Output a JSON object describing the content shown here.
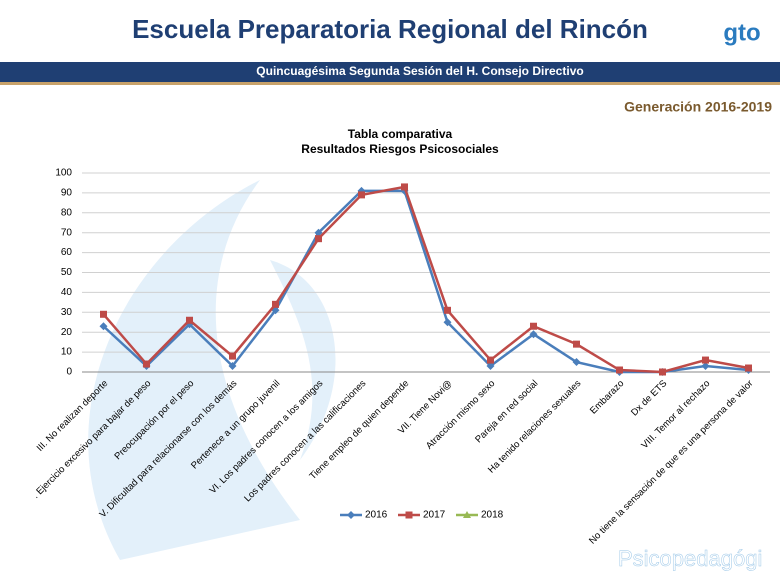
{
  "header": {
    "title": "Escuela Preparatoria Regional del Rincón",
    "logo": "gto",
    "session": "Quincuagésima Segunda Sesión del H. Consejo Directivo",
    "generation": "Generación 2016-2019"
  },
  "footer": "Psicopedagógi",
  "chart_data": {
    "type": "line",
    "title": "Tabla comparativa",
    "subtitle": "Resultados Riesgos Psicosociales",
    "categories": [
      "III. No realizan deporte",
      ". Ejercicio excesivo para bajar de peso",
      "Preocupación por el peso",
      "V. Dificultad para relacionarse con los demás",
      "Pertenece a un grupo juvenil",
      "VI. Los padres conocen a los amigos",
      "Los padres conocen a las calificaciones",
      "Tiene empleo de quien depende",
      "VII. Tiene Novi@",
      "Atracción mismo sexo",
      "Pareja en red social",
      "Ha tenido relaciones sexuales",
      "Embarazo",
      "Dx de ETS",
      "VIII. Temor al rechazo",
      "No tiene la sensación de que es una persona de valor"
    ],
    "series": [
      {
        "name": "2016",
        "color": "#4a7ebb",
        "marker": "diamond",
        "values": [
          23,
          3,
          24,
          3,
          31,
          70,
          91,
          91,
          25,
          3,
          19,
          5,
          0,
          0,
          3,
          1
        ]
      },
      {
        "name": "2017",
        "color": "#be4b48",
        "marker": "square",
        "values": [
          29,
          4,
          26,
          8,
          34,
          67,
          89,
          93,
          31,
          6,
          23,
          14,
          1,
          0,
          6,
          2
        ]
      },
      {
        "name": "2018",
        "color": "#98b954",
        "marker": "triangle",
        "values": [
          null,
          null,
          null,
          null,
          null,
          null,
          null,
          null,
          null,
          null,
          null,
          null,
          null,
          null,
          null,
          null
        ]
      }
    ],
    "ylim": [
      0,
      100
    ],
    "yticks": [
      0,
      10,
      20,
      30,
      40,
      50,
      60,
      70,
      80,
      90,
      100
    ],
    "grid": true,
    "legend": "bottom"
  }
}
